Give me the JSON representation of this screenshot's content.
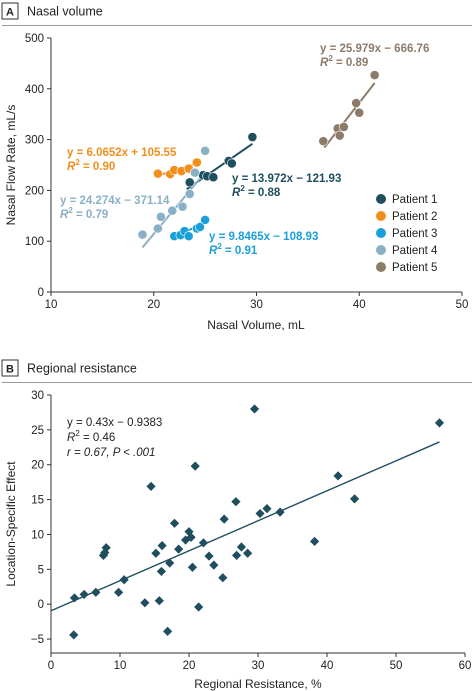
{
  "panels": [
    {
      "letter": "A",
      "title": "Nasal volume"
    },
    {
      "letter": "B",
      "title": "Regional resistance"
    }
  ],
  "chart_data": [
    {
      "type": "scatter",
      "title": "Nasal volume",
      "xlabel": "Nasal Volume, mL",
      "ylabel": "Nasal Flow Rate, mL/s",
      "xlim": [
        10,
        50
      ],
      "ylim": [
        0,
        500
      ],
      "xticks": [
        10,
        20,
        30,
        40,
        50
      ],
      "yticks": [
        0,
        100,
        200,
        300,
        400,
        500
      ],
      "grid": false,
      "legend_position": "bottom-right",
      "series": [
        {
          "name": "Patient 1",
          "color": "#1f4e5f",
          "points": [
            [
              23.5,
              216
            ],
            [
              24.8,
              230
            ],
            [
              25.2,
              228
            ],
            [
              25.8,
              226
            ],
            [
              27.3,
              258
            ],
            [
              27.6,
              253
            ],
            [
              29.6,
              305
            ]
          ],
          "fit": {
            "slope": 13.972,
            "intercept": -121.93,
            "x_range": [
              23.2,
              29.6
            ]
          },
          "equation": "y = 13.972x − 121.93",
          "r2_value": "0.88"
        },
        {
          "name": "Patient 2",
          "color": "#f28e1c",
          "points": [
            [
              20.4,
              233
            ],
            [
              21.6,
              232
            ],
            [
              22.0,
              240
            ],
            [
              22.7,
              238
            ],
            [
              23.4,
              243
            ],
            [
              24.2,
              255
            ]
          ],
          "fit": {
            "slope": 6.0652,
            "intercept": 105.55,
            "x_range": [
              20.4,
              24.6
            ]
          },
          "equation": "y = 6.0652x + 105.55",
          "r2_value": "0.90"
        },
        {
          "name": "Patient 3",
          "color": "#1aa0d8",
          "points": [
            [
              22.0,
              110
            ],
            [
              22.6,
              112
            ],
            [
              23.0,
              120
            ],
            [
              23.4,
              110
            ],
            [
              24.2,
              125
            ],
            [
              24.5,
              128
            ],
            [
              25.0,
              142
            ]
          ],
          "fit": {
            "slope": 9.8465,
            "intercept": -108.93,
            "x_range": [
              21.8,
              25.2
            ]
          },
          "equation": "y = 9.8465x − 108.93",
          "r2_value": "0.91"
        },
        {
          "name": "Patient 4",
          "color": "#8ab0c5",
          "points": [
            [
              18.9,
              113
            ],
            [
              20.4,
              125
            ],
            [
              20.7,
              148
            ],
            [
              21.8,
              160
            ],
            [
              22.8,
              168
            ],
            [
              23.5,
              193
            ],
            [
              24.0,
              235
            ],
            [
              25.0,
              278
            ]
          ],
          "fit": {
            "slope": 24.274,
            "intercept": -371.14,
            "x_range": [
              18.9,
              25.0
            ]
          },
          "equation": "y = 24.274x − 371.14",
          "r2_value": "0.79"
        },
        {
          "name": "Patient 5",
          "color": "#8d7b69",
          "points": [
            [
              36.5,
              297
            ],
            [
              37.9,
              322
            ],
            [
              38.1,
              308
            ],
            [
              38.5,
              325
            ],
            [
              39.7,
              372
            ],
            [
              40.0,
              353
            ],
            [
              41.5,
              427
            ]
          ],
          "fit": {
            "slope": 25.979,
            "intercept": -666.76,
            "x_range": [
              36.6,
              41.5
            ]
          },
          "equation": "y = 25.979x − 666.76",
          "r2_value": "0.89"
        }
      ]
    },
    {
      "type": "scatter",
      "title": "Regional resistance",
      "xlabel": "Regional Resistance, %",
      "ylabel": "Location-Specific Effect",
      "xlim": [
        0,
        60
      ],
      "ylim": [
        -7,
        30
      ],
      "xticks": [
        0,
        10,
        20,
        30,
        40,
        50,
        60
      ],
      "yticks": [
        -5,
        0,
        5,
        10,
        15,
        20,
        25,
        30
      ],
      "grid": false,
      "marker": "diamond",
      "color": "#1f4e5f",
      "points": [
        [
          3.3,
          -4.4
        ],
        [
          3.4,
          0.9
        ],
        [
          4.8,
          1.4
        ],
        [
          6.5,
          1.7
        ],
        [
          7.6,
          7.0
        ],
        [
          7.8,
          7.4
        ],
        [
          8.0,
          8.1
        ],
        [
          9.8,
          1.7
        ],
        [
          10.6,
          3.5
        ],
        [
          13.6,
          0.2
        ],
        [
          14.5,
          16.9
        ],
        [
          15.2,
          7.3
        ],
        [
          15.7,
          0.5
        ],
        [
          16.0,
          4.7
        ],
        [
          16.1,
          8.4
        ],
        [
          16.9,
          -3.9
        ],
        [
          17.2,
          5.9
        ],
        [
          17.9,
          11.6
        ],
        [
          18.5,
          7.9
        ],
        [
          19.5,
          9.2
        ],
        [
          20.0,
          10.4
        ],
        [
          20.3,
          9.6
        ],
        [
          20.5,
          5.3
        ],
        [
          20.9,
          19.8
        ],
        [
          21.4,
          -0.4
        ],
        [
          22.1,
          8.8
        ],
        [
          22.9,
          6.9
        ],
        [
          23.6,
          5.6
        ],
        [
          24.9,
          3.8
        ],
        [
          25.1,
          12.2
        ],
        [
          26.8,
          14.7
        ],
        [
          26.9,
          7.0
        ],
        [
          27.6,
          8.2
        ],
        [
          28.5,
          7.3
        ],
        [
          29.5,
          28.0
        ],
        [
          30.3,
          13.0
        ],
        [
          31.3,
          13.7
        ],
        [
          33.2,
          13.2
        ],
        [
          38.2,
          9.0
        ],
        [
          41.6,
          18.4
        ],
        [
          44.0,
          15.1
        ],
        [
          56.3,
          26.0
        ]
      ],
      "fit": {
        "slope": 0.43,
        "intercept": -0.9383,
        "x_range": [
          0,
          56.3
        ]
      },
      "annotations": {
        "line1": "y = 0.43x − 0.9383",
        "r2_value": "0.46",
        "line3": "r = 0.67, P < .001"
      }
    }
  ]
}
